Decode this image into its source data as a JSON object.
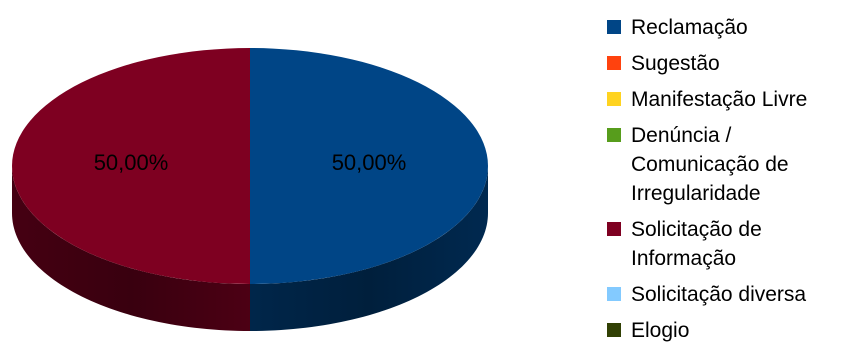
{
  "chart_data": {
    "type": "pie",
    "style": "3d",
    "categories": [
      "Reclamação",
      "Sugestão",
      "Manifestação Livre",
      "Denúncia /\nComunicação de\nIrregularidade",
      "Solicitação de\nInformação",
      "Solicitação diversa",
      "Elogio"
    ],
    "values": [
      50,
      0,
      0,
      0,
      50,
      0,
      0
    ],
    "data_labels": [
      "50,00%",
      "",
      "",
      "",
      "50,00%",
      "",
      ""
    ],
    "colors": [
      "#004586",
      "#ff420e",
      "#ffd320",
      "#579d1c",
      "#7e0021",
      "#83caff",
      "#314004"
    ],
    "legend_position": "right",
    "title": ""
  }
}
